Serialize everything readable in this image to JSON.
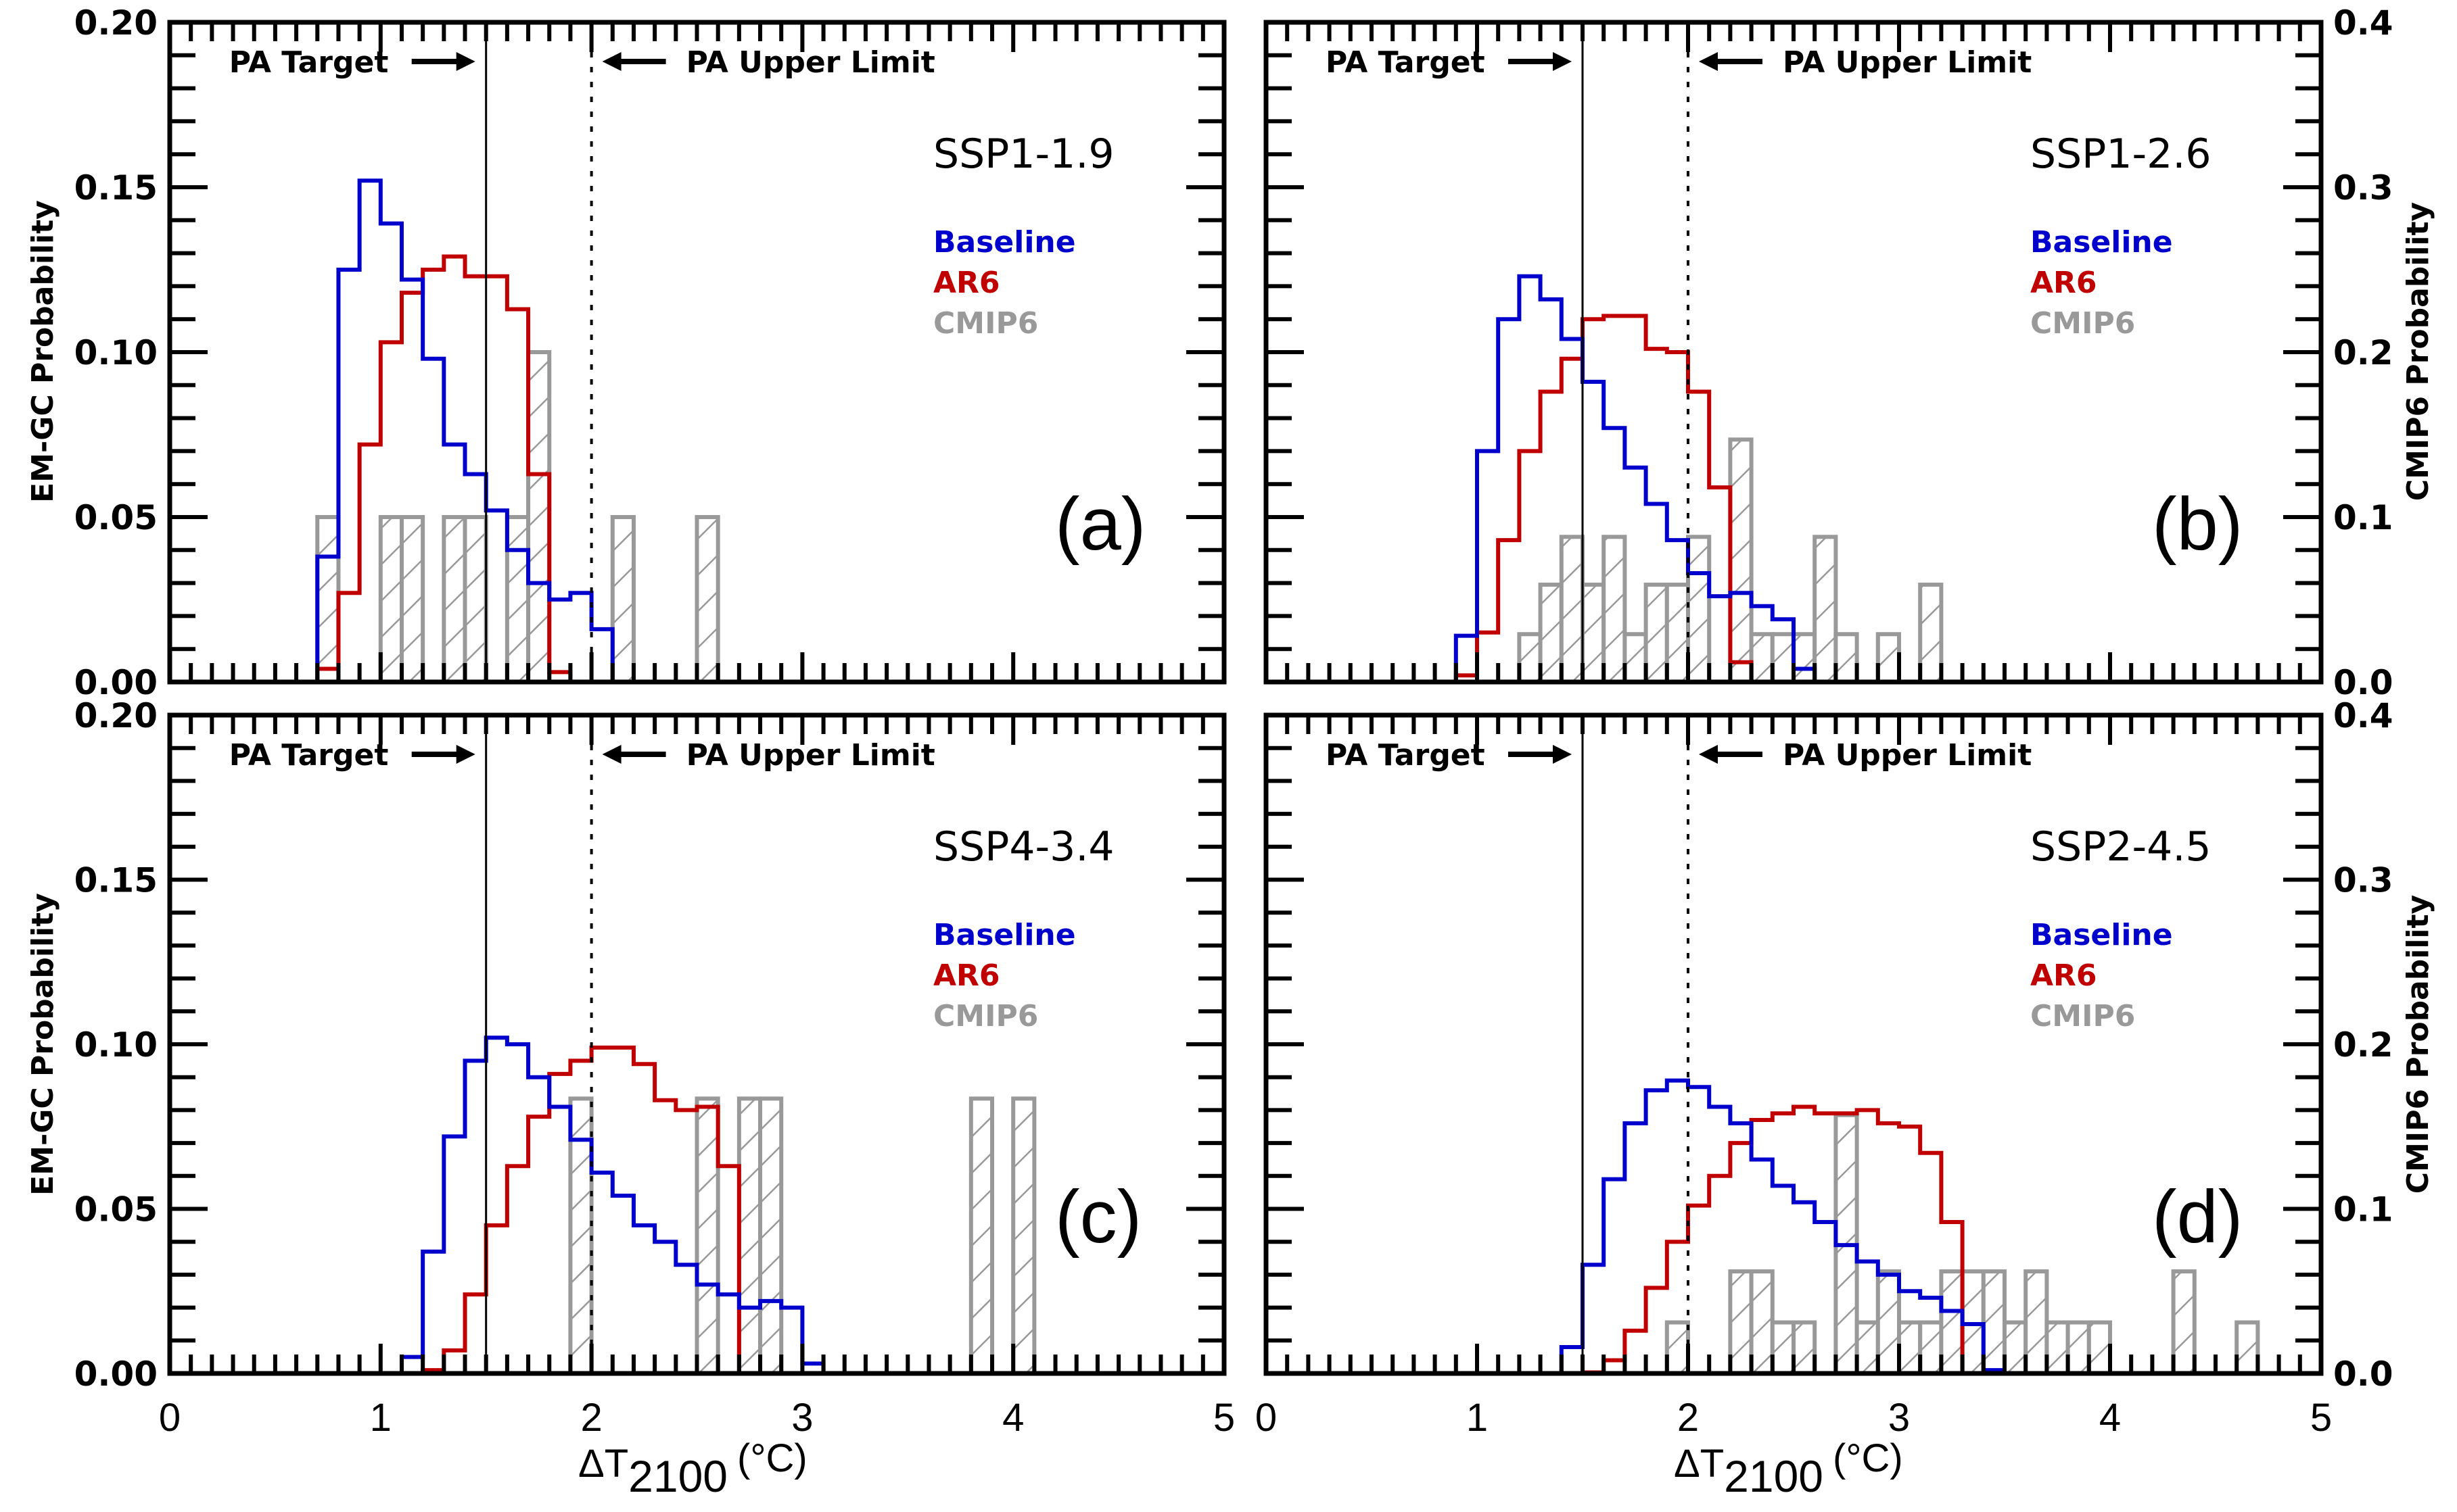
{
  "chart_data": {
    "type": "bar",
    "layout": "2x2 panels",
    "x_label": "ΔT",
    "x_label_subscript": "2100",
    "x_label_unit": "(°C)",
    "xlim": [
      0,
      5
    ],
    "x_ticks": [
      "0",
      "1",
      "2",
      "3",
      "4",
      "5"
    ],
    "bin_width": 0.1,
    "left_ylabel": "EM-GC Probability",
    "left_ylim": [
      0,
      0.2
    ],
    "left_ticks": [
      "0.00",
      "0.05",
      "0.10",
      "0.15",
      "0.20"
    ],
    "right_ylabel": "CMIP6 Probability",
    "right_ylim": [
      0,
      0.4
    ],
    "right_ticks": [
      "0.0",
      "0.1",
      "0.2",
      "0.3",
      "0.4"
    ],
    "reference_lines": [
      {
        "x": 1.5,
        "style": "solid",
        "label": "PA Target",
        "arrow": "right"
      },
      {
        "x": 2.0,
        "style": "dotted",
        "label": "PA Upper Limit",
        "arrow": "left"
      }
    ],
    "legend": [
      {
        "name": "Baseline",
        "color": "#0000cc"
      },
      {
        "name": "AR6",
        "color": "#c00000"
      },
      {
        "name": "CMIP6",
        "color": "#999999"
      }
    ],
    "panels": [
      {
        "letter": "(a)",
        "scenario": "SSP1-1.9",
        "baseline": {
          "start": 0.7,
          "values": [
            0.038,
            0.125,
            0.152,
            0.139,
            0.122,
            0.098,
            0.072,
            0.063,
            0.052,
            0.04,
            0.03,
            0.025,
            0.027,
            0.016
          ]
        },
        "ar6": {
          "start": 0.7,
          "values": [
            0.004,
            0.027,
            0.072,
            0.103,
            0.118,
            0.125,
            0.129,
            0.123,
            0.123,
            0.113,
            0.063,
            0.003
          ]
        },
        "cmip6": {
          "start": 0.7,
          "values": [
            0.1,
            0,
            0,
            0.1,
            0.1,
            0,
            0.1,
            0.1,
            0,
            0.1,
            0.2,
            0,
            0,
            0,
            0.1,
            0,
            0,
            0,
            0.1
          ]
        }
      },
      {
        "letter": "(b)",
        "scenario": "SSP1-2.6",
        "baseline": {
          "start": 0.9,
          "values": [
            0.014,
            0.07,
            0.11,
            0.123,
            0.116,
            0.104,
            0.091,
            0.077,
            0.065,
            0.054,
            0.043,
            0.033,
            0.026,
            0.027,
            0.023,
            0.019,
            0.004
          ]
        },
        "ar6": {
          "start": 0.9,
          "values": [
            0.002,
            0.015,
            0.043,
            0.07,
            0.088,
            0.098,
            0.11,
            0.111,
            0.111,
            0.101,
            0.1,
            0.088,
            0.059,
            0.006
          ]
        },
        "cmip6": {
          "start": 1.2,
          "values": [
            0.029,
            0.059,
            0.088,
            0.059,
            0.088,
            0.029,
            0.059,
            0.059,
            0.088,
            0,
            0.147,
            0.029,
            0.029,
            0.029,
            0.088,
            0.029,
            0,
            0.029,
            0,
            0.059
          ]
        }
      },
      {
        "letter": "(c)",
        "scenario": "SSP4-3.4",
        "baseline": {
          "start": 1.1,
          "values": [
            0.005,
            0.037,
            0.072,
            0.095,
            0.102,
            0.1,
            0.09,
            0.081,
            0.071,
            0.061,
            0.054,
            0.045,
            0.04,
            0.033,
            0.027,
            0.024,
            0.02,
            0.022,
            0.02,
            0.003
          ]
        },
        "ar6": {
          "start": 1.2,
          "values": [
            0.001,
            0.007,
            0.024,
            0.045,
            0.063,
            0.078,
            0.091,
            0.095,
            0.099,
            0.099,
            0.094,
            0.083,
            0.08,
            0.081,
            0.063
          ]
        },
        "cmip6": {
          "start": 1.9,
          "values": [
            0.167,
            0,
            0,
            0,
            0,
            0,
            0.167,
            0,
            0.167,
            0.167,
            0,
            0,
            0,
            0,
            0,
            0,
            0,
            0,
            0,
            0.167,
            0,
            0.167
          ]
        }
      },
      {
        "letter": "(d)",
        "scenario": "SSP2-4.5",
        "baseline": {
          "start": 1.4,
          "values": [
            0.008,
            0.033,
            0.059,
            0.076,
            0.086,
            0.089,
            0.087,
            0.081,
            0.076,
            0.065,
            0.057,
            0.052,
            0.046,
            0.039,
            0.034,
            0.03,
            0.025,
            0.023,
            0.019,
            0.015,
            0.001
          ]
        },
        "ar6": {
          "start": 1.5,
          "values": [
            0.0003,
            0.004,
            0.013,
            0.026,
            0.04,
            0.051,
            0.06,
            0.07,
            0.077,
            0.079,
            0.081,
            0.079,
            0.079,
            0.08,
            0.076,
            0.075,
            0.067,
            0.046
          ]
        },
        "cmip6": {
          "start": 1.9,
          "values": [
            0.031,
            0,
            0,
            0.062,
            0.062,
            0.031,
            0.031,
            0,
            0.157,
            0.031,
            0.062,
            0.031,
            0.031,
            0.062,
            0.062,
            0.062,
            0.031,
            0.062,
            0.031,
            0.031,
            0.031,
            0,
            0,
            0,
            0.062,
            0,
            0,
            0.031
          ]
        }
      }
    ]
  }
}
